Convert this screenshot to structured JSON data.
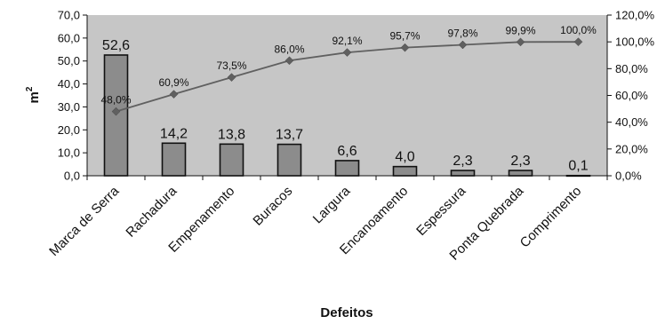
{
  "chart_data": {
    "type": "bar",
    "title": "",
    "xlabel": "Defeitos",
    "ylabel": "m²",
    "ylabel_base": "m",
    "ylabel_sup": "2",
    "categories": [
      "Marca de Serra",
      "Rachadura",
      "Empenamento",
      "Buracos",
      "Largura",
      "Encanoamento",
      "Espessura",
      "Ponta Quebrada",
      "Comprimento"
    ],
    "series": [
      {
        "type": "bar",
        "values": [
          52.6,
          14.2,
          13.8,
          13.7,
          6.6,
          4.0,
          2.3,
          2.3,
          0.1
        ],
        "labels": [
          "52,6",
          "14,2",
          "13,8",
          "13,7",
          "6,6",
          "4,0",
          "2,3",
          "2,3",
          "0,1"
        ],
        "axis": "left",
        "color": "#8c8c8c"
      },
      {
        "type": "line",
        "values": [
          48.0,
          60.9,
          73.5,
          86.0,
          92.1,
          95.7,
          97.8,
          99.9,
          100.0
        ],
        "labels": [
          "48,0%",
          "60,9%",
          "73,5%",
          "86,0%",
          "92,1%",
          "95,7%",
          "97,8%",
          "99,9%",
          "100,0%"
        ],
        "axis": "right",
        "color": "#606060"
      }
    ],
    "ylim": [
      0,
      70
    ],
    "y_ticks": [
      0,
      10,
      20,
      30,
      40,
      50,
      60,
      70
    ],
    "y_tick_labels": [
      "0,0",
      "10,0",
      "20,0",
      "30,0",
      "40,0",
      "50,0",
      "60,0",
      "70,0"
    ],
    "y2lim": [
      0,
      120
    ],
    "y2_ticks": [
      0,
      20,
      40,
      60,
      80,
      100,
      120
    ],
    "y2_tick_labels": [
      "0,0%",
      "20,0%",
      "40,0%",
      "60,0%",
      "80,0%",
      "100,0%",
      "120,0%"
    ],
    "grid": false,
    "legend": "none",
    "plot_background": "#c6c6c6"
  }
}
